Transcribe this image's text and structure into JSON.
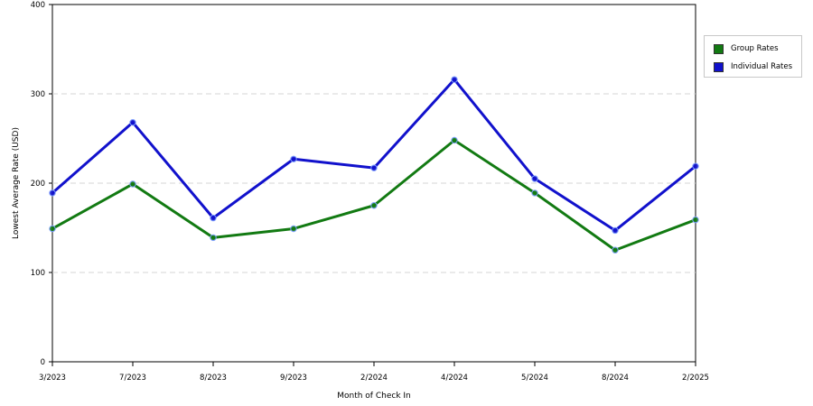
{
  "chart_data": {
    "type": "line",
    "title": "",
    "xlabel": "Month of Check In",
    "ylabel": "Lowest Average Rate (USD)",
    "categories": [
      "3/2023",
      "7/2023",
      "8/2023",
      "9/2023",
      "2/2024",
      "4/2024",
      "5/2024",
      "8/2024",
      "2/2025"
    ],
    "ylim": [
      0,
      400
    ],
    "yticks": [
      "0",
      "100",
      "200",
      "300",
      "400"
    ],
    "grid": true,
    "legend_position": "right",
    "series": [
      {
        "name": "Group Rates",
        "color": "#127a12",
        "values": [
          149,
          199,
          139,
          149,
          175,
          248,
          189,
          125,
          159
        ]
      },
      {
        "name": "Individual Rates",
        "color": "#1111cc",
        "values": [
          189,
          268,
          161,
          227,
          217,
          316,
          205,
          147,
          219
        ]
      }
    ]
  }
}
